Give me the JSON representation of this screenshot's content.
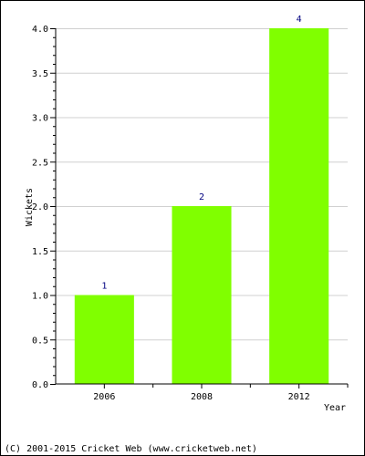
{
  "chart_data": {
    "type": "bar",
    "categories": [
      "2006",
      "2008",
      "2012"
    ],
    "values": [
      1,
      2,
      4
    ],
    "data_labels": [
      "1",
      "2",
      "4"
    ],
    "y_ticks": [
      "0.0",
      "0.5",
      "1.0",
      "1.5",
      "2.0",
      "2.5",
      "3.0",
      "3.5",
      "4.0"
    ],
    "ylim": [
      0,
      4
    ],
    "xlabel": "Year",
    "ylabel": "Wickets",
    "title": "",
    "grid": true,
    "bar_color": "#80ff00",
    "grid_color": "#d0d0d0"
  },
  "footer": {
    "copyright": "(C) 2001-2015 Cricket Web (www.cricketweb.net)"
  }
}
